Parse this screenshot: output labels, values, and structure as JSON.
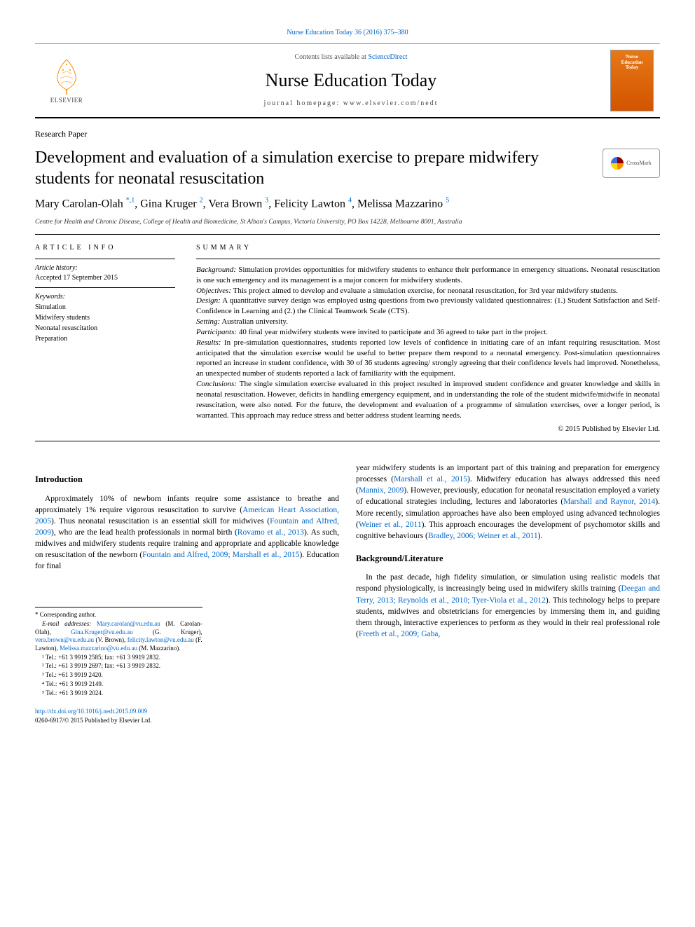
{
  "citation": "Nurse Education Today 36 (2016) 375–380",
  "header": {
    "sciencedirect": "Contents lists available at ",
    "sciencedirect_link": "ScienceDirect",
    "journal_title": "Nurse Education Today",
    "homepage_label": "journal homepage: www.elsevier.com/nedt",
    "elsevier_label": "ELSEVIER",
    "cover_line1": "Nurse",
    "cover_line2": "Education",
    "cover_line3": "Today"
  },
  "article_type": "Research Paper",
  "title": "Development and evaluation of a simulation exercise to prepare midwifery students for neonatal resuscitation",
  "crossmark_label": "CrossMark",
  "authors_html": "Mary Carolan-Olah <sup>*,1</sup>, Gina Kruger <sup>2</sup>, Vera Brown <sup>3</sup>, Felicity Lawton <sup>4</sup>, Melissa Mazzarino <sup>5</sup>",
  "affiliation": "Centre for Health and Chronic Disease, College of Health and Biomedicine, St Alban's Campus, Victoria University, PO Box 14228, Melbourne 8001, Australia",
  "article_info": {
    "heading": "ARTICLE INFO",
    "history_label": "Article history:",
    "history_value": "Accepted 17 September 2015",
    "keywords_label": "Keywords:",
    "keywords": [
      "Simulation",
      "Midwifery students",
      "Neonatal resuscitation",
      "Preparation"
    ]
  },
  "summary": {
    "heading": "SUMMARY",
    "segments": [
      {
        "label": "Background:",
        "text": " Simulation provides opportunities for midwifery students to enhance their performance in emergency situations. Neonatal resuscitation is one such emergency and its management is a major concern for midwifery students."
      },
      {
        "label": "Objectives:",
        "text": " This project aimed to develop and evaluate a simulation exercise, for neonatal resuscitation, for 3rd year midwifery students."
      },
      {
        "label": "Design:",
        "text": " A quantitative survey design was employed using questions from two previously validated questionnaires: (1.) Student Satisfaction and Self-Confidence in Learning and (2.) the Clinical Teamwork Scale (CTS)."
      },
      {
        "label": "Setting:",
        "text": " Australian university."
      },
      {
        "label": "Participants:",
        "text": " 40 final year midwifery students were invited to participate and 36 agreed to take part in the project."
      },
      {
        "label": "Results:",
        "text": " In pre-simulation questionnaires, students reported low levels of confidence in initiating care of an infant requiring resuscitation. Most anticipated that the simulation exercise would be useful to better prepare them respond to a neonatal emergency. Post-simulation questionnaires reported an increase in student confidence, with 30 of 36 students agreeing/ strongly agreeing that their confidence levels had improved. Nonetheless, an unexpected number of students reported a lack of familiarity with the equipment."
      },
      {
        "label": "Conclusions:",
        "text": " The single simulation exercise evaluated in this project resulted in improved student confidence and greater knowledge and skills in neonatal resuscitation. However, deficits in handling emergency equipment, and in understanding the role of the student midwife/midwife in neonatal resuscitation, were also noted. For the future, the development and evaluation of a programme of simulation exercises, over a longer period, is warranted. This approach may reduce stress and better address student learning needs."
      }
    ],
    "copyright": "© 2015 Published by Elsevier Ltd."
  },
  "intro_heading": "Introduction",
  "intro_p1_pre": "Approximately 10% of newborn infants require some assistance to breathe and approximately 1% require vigorous resuscitation to survive (",
  "intro_p1_link1": "American Heart Association, 2005",
  "intro_p1_mid1": "). Thus neonatal resuscitation is an essential skill for midwives (",
  "intro_p1_link2": "Fountain and Alfred, 2009",
  "intro_p1_mid2": "), who are the lead health professionals in normal birth (",
  "intro_p1_link3": "Rovamo et al., 2013",
  "intro_p1_mid3": "). As such, midwives and midwifery students require training and appropriate and applicable knowledge on resuscitation of the newborn (",
  "intro_p1_link4": "Fountain and Alfred, 2009; Marshall et al., 2015",
  "intro_p1_post": "). Education for final",
  "intro_p2_pre": "year midwifery students is an important part of this training and preparation for emergency processes (",
  "intro_p2_link1": "Marshall et al., 2015",
  "intro_p2_mid1": "). Midwifery education has always addressed this need (",
  "intro_p2_link2": "Mannix, 2009",
  "intro_p2_mid2": "). However, previously, education for neonatal resuscitation employed a variety of educational strategies including, lectures and laboratories (",
  "intro_p2_link3": "Marshall and Raynor, 2014",
  "intro_p2_mid3": "). More recently, simulation approaches have also been employed using advanced technologies (",
  "intro_p2_link4": "Weiner et al., 2011",
  "intro_p2_mid4": "). This approach encourages the development of psychomotor skills and cognitive behaviours (",
  "intro_p2_link5": "Bradley, 2006; Weiner et al., 2011",
  "intro_p2_post": ").",
  "background_heading": "Background/Literature",
  "bg_p1_pre": "In the past decade, high fidelity simulation, or simulation using realistic models that respond physiologically, is increasingly being used in midwifery skills training (",
  "bg_p1_link1": "Deegan and Terry, 2013; Reynolds et al., 2010; Tyer-Viola et al., 2012",
  "bg_p1_mid": "). This technology helps to prepare students, midwives and obstetricians for emergencies by immersing them in, and guiding them through, interactive experiences to perform as they would in their real professional role (",
  "bg_p1_link2": "Freeth et al., 2009; Gaba,",
  "footnotes": {
    "corresponding": "* Corresponding author.",
    "email_label": "E-mail addresses: ",
    "emails": [
      {
        "addr": "Mary.carolan@vu.edu.au",
        "who": " (M. Carolan-Olah), "
      },
      {
        "addr": "Gina.Kruger@vu.edu.au",
        "who": " (G. Kruger), "
      },
      {
        "addr": "vera.brown@vu.edu.au",
        "who": " (V. Brown), "
      },
      {
        "addr": "felicity.lawton@vu.edu.au",
        "who": " (F. Lawton), "
      },
      {
        "addr": "Melissa.mazzarino@vu.edu.au",
        "who": " (M. Mazzarino)."
      }
    ],
    "tels": [
      "¹ Tel.: +61 3 9919 2585; fax: +61 3 9919 2832.",
      "² Tel.: +61 3 9919 2697; fax: +61 3 9919 2832.",
      "³ Tel.: +61 3 9919 2420.",
      "⁴ Tel.: +61 3 9919 2149.",
      "⁵ Tel.: +61 3 9919 2024."
    ]
  },
  "footer": {
    "doi": "http://dx.doi.org/10.1016/j.nedt.2015.09.009",
    "issn_line": "0260-6917/© 2015 Published by Elsevier Ltd."
  }
}
